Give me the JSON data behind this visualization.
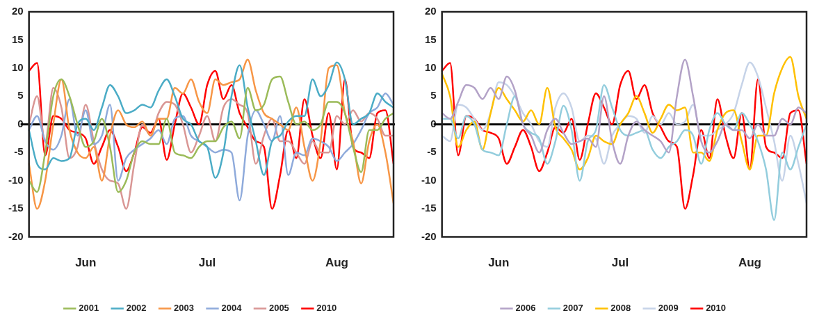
{
  "chart_data": [
    {
      "type": "line",
      "categories": [
        null,
        null,
        null,
        null,
        null,
        null,
        null,
        "Jun",
        null,
        null,
        null,
        null,
        null,
        null,
        null,
        null,
        null,
        null,
        null,
        null,
        null,
        null,
        "Jul",
        null,
        null,
        null,
        null,
        null,
        null,
        null,
        null,
        null,
        null,
        null,
        null,
        null,
        null,
        null,
        "Aug",
        null,
        null,
        null,
        null,
        null,
        null,
        null
      ],
      "ylim": [
        -20,
        20
      ],
      "yticks": [
        -20,
        -15,
        -10,
        -5,
        0,
        5,
        10,
        15,
        20
      ],
      "legend": "bottom",
      "marker": "none",
      "ref_lines": [
        {
          "axis": "y",
          "value": 0,
          "color": "#000000"
        }
      ],
      "series": [
        {
          "name": "2001",
          "color": "#9bbb59",
          "values": [
            -10,
            -12,
            -5,
            5,
            8,
            5,
            0,
            -4,
            -3,
            1,
            -4,
            -12,
            -10,
            -5,
            -3,
            -3.5,
            -3.5,
            1,
            -5,
            -5.5,
            -6,
            -4,
            -3,
            -3,
            -0.5,
            0.5,
            -2.5,
            6.5,
            2.5,
            3.5,
            8,
            8.5,
            4,
            0,
            0.5,
            -1,
            0,
            4,
            4,
            2,
            -4,
            -8.5,
            -1,
            -1,
            1,
            2
          ]
        },
        {
          "name": "2002",
          "color": "#4bacc6",
          "values": [
            -1,
            -7,
            -8,
            -6,
            -6.5,
            -6,
            0,
            1,
            -1,
            3,
            7,
            5,
            2,
            2.5,
            3.5,
            3,
            6,
            8,
            5,
            1,
            0,
            -3,
            -4,
            -9.5,
            -5,
            5,
            10.5,
            3,
            -3,
            -9,
            -3,
            -2,
            0.5,
            1.5,
            1.5,
            8,
            5,
            7,
            11,
            8,
            0,
            1,
            2,
            5.5,
            4,
            3
          ]
        },
        {
          "name": "2003",
          "color": "#f79646",
          "values": [
            -7,
            -15,
            -10,
            0,
            8,
            -1,
            -5,
            -6,
            -4,
            -10,
            -2,
            2.5,
            0,
            -0.5,
            0.5,
            -2,
            1,
            1,
            6.5,
            5.5,
            8,
            4,
            2,
            8,
            7,
            7.5,
            8,
            11.5,
            6,
            2,
            1,
            0,
            -1,
            3,
            -4,
            -10,
            -3,
            10,
            10.5,
            2,
            -3,
            -10.5,
            -3,
            0,
            -5,
            -14
          ]
        },
        {
          "name": "2004",
          "color": "#8eaadb",
          "values": [
            -1,
            1.5,
            -3,
            -4.5,
            -2,
            4.5,
            -2,
            2.5,
            -3.5,
            -2,
            3.5,
            -10,
            -6,
            -4.5,
            -3.5,
            -2.5,
            -1,
            -3.5,
            1,
            1.5,
            -2,
            -3,
            -4,
            -5,
            -4.5,
            -5,
            -13.5,
            -2,
            2.5,
            0,
            -3,
            1.5,
            -9,
            -5,
            -5.5,
            -2.5,
            -3,
            -4,
            -6.5,
            -5,
            -3.5,
            -1,
            2,
            3,
            5.5,
            3.5
          ]
        },
        {
          "name": "2005",
          "color": "#d99694",
          "values": [
            0,
            5,
            -3,
            6.5,
            3,
            -6,
            -4,
            3.5,
            -3,
            -8,
            -10,
            -10.5,
            -15,
            -7,
            0,
            -2,
            2,
            4,
            3.5,
            0,
            -5,
            -2,
            1.5,
            -3,
            3,
            4.5,
            3.5,
            2,
            -7,
            -2,
            1,
            -3,
            -3,
            -5,
            -7,
            -3,
            -5,
            -5,
            1.5,
            0,
            2.5,
            0.5,
            2,
            1,
            -2,
            -2
          ]
        },
        {
          "name": "2010",
          "color": "#ff0000",
          "values": [
            9.5,
            10.9,
            -5.5,
            1.5,
            1,
            -1,
            -1.5,
            -2.5,
            -7,
            -4,
            -1,
            -4,
            -8.3,
            -5,
            -0.5,
            -1.5,
            1,
            -6.3,
            0,
            5.5,
            3,
            0,
            7,
            9.5,
            4.5,
            7,
            2,
            -0.5,
            -3,
            -4,
            -15,
            -9,
            -1,
            -6,
            4.5,
            -2,
            -6,
            2,
            -8,
            8,
            -4,
            -5,
            -6,
            2,
            2.5,
            -7
          ]
        }
      ]
    },
    {
      "type": "line",
      "categories": [
        null,
        null,
        null,
        null,
        null,
        null,
        null,
        "Jun",
        null,
        null,
        null,
        null,
        null,
        null,
        null,
        null,
        null,
        null,
        null,
        null,
        null,
        null,
        "Jul",
        null,
        null,
        null,
        null,
        null,
        null,
        null,
        null,
        null,
        null,
        null,
        null,
        null,
        null,
        null,
        "Aug",
        null,
        null,
        null,
        null,
        null,
        null,
        null
      ],
      "ylim": [
        -20,
        20
      ],
      "yticks": [
        -20,
        -15,
        -10,
        -5,
        0,
        5,
        10,
        15,
        20
      ],
      "legend": "bottom",
      "marker": "none",
      "ref_lines": [
        {
          "axis": "y",
          "value": 0,
          "color": "#000000"
        }
      ],
      "series": [
        {
          "name": "2006",
          "color": "#b3a2c7",
          "values": [
            2,
            1,
            4,
            7,
            6.5,
            4.5,
            6.5,
            4.5,
            8.5,
            6,
            0,
            -2,
            -5,
            -1,
            1,
            -1.5,
            -3.5,
            -3,
            -2.5,
            -4,
            5,
            -3,
            -7,
            -2,
            0.5,
            -1,
            -2,
            -3,
            -5,
            5,
            11.5,
            5,
            -3,
            -5,
            -3,
            0,
            -1,
            -1,
            -2.5,
            0,
            -2,
            -2,
            1,
            0,
            3,
            2
          ]
        },
        {
          "name": "2007",
          "color": "#93cddd",
          "values": [
            1,
            1,
            -2.5,
            1.5,
            0,
            -4.5,
            -5,
            -5.5,
            0,
            5,
            0,
            -1.5,
            -2.5,
            -7,
            -3,
            3.3,
            -1,
            -10,
            -3,
            -1,
            7,
            3,
            -1,
            -2,
            -1.5,
            -1,
            -4.5,
            -6,
            -4,
            -3,
            -1,
            -2,
            -7,
            -1,
            2,
            0,
            -1,
            2,
            0,
            -3,
            -8,
            -17,
            -5,
            -8,
            -4,
            0
          ]
        },
        {
          "name": "2008",
          "color": "#ffc000",
          "values": [
            9,
            5,
            -4,
            -1,
            0.5,
            -4.5,
            2,
            6.5,
            4.5,
            2.5,
            0.5,
            2.5,
            0,
            6.5,
            -0.5,
            -2.5,
            -4.5,
            -8,
            -6,
            -2,
            -3,
            -3.5,
            0,
            2,
            5,
            2,
            -1.5,
            1,
            3.5,
            2.5,
            3,
            -5,
            -5,
            -6.5,
            -1,
            2,
            2.5,
            -3,
            -8,
            -2,
            -2,
            5.5,
            10,
            12,
            5,
            1
          ]
        },
        {
          "name": "2009",
          "color": "#c6d3e8",
          "values": [
            -2,
            -3,
            3.5,
            3,
            1,
            -1,
            2,
            7.5,
            7,
            5,
            2,
            0,
            -3,
            -4,
            3,
            5.5,
            3,
            -3,
            -2,
            -2.5,
            -7,
            -2,
            0,
            1.5,
            1,
            -1.5,
            1.5,
            0,
            2,
            0,
            0.5,
            3.5,
            -2,
            -2,
            -1,
            0,
            2,
            7,
            11,
            8.5,
            3,
            -3,
            -10,
            -2,
            -7,
            -14
          ]
        },
        {
          "name": "2010",
          "color": "#ff0000",
          "values": [
            9.5,
            10.9,
            -5.5,
            1.5,
            1,
            -1,
            -1.5,
            -2.5,
            -7,
            -4,
            -1,
            -4,
            -8.3,
            -5,
            -0.5,
            -1.5,
            1,
            -6.3,
            0,
            5.5,
            3,
            0,
            7,
            9.5,
            4.5,
            7,
            2,
            -0.5,
            -3,
            -4,
            -15,
            -9,
            -1,
            -6,
            4.5,
            -2,
            -6,
            2,
            -8,
            8,
            -4,
            -5,
            -6,
            2,
            2.5,
            -7
          ]
        }
      ]
    }
  ]
}
